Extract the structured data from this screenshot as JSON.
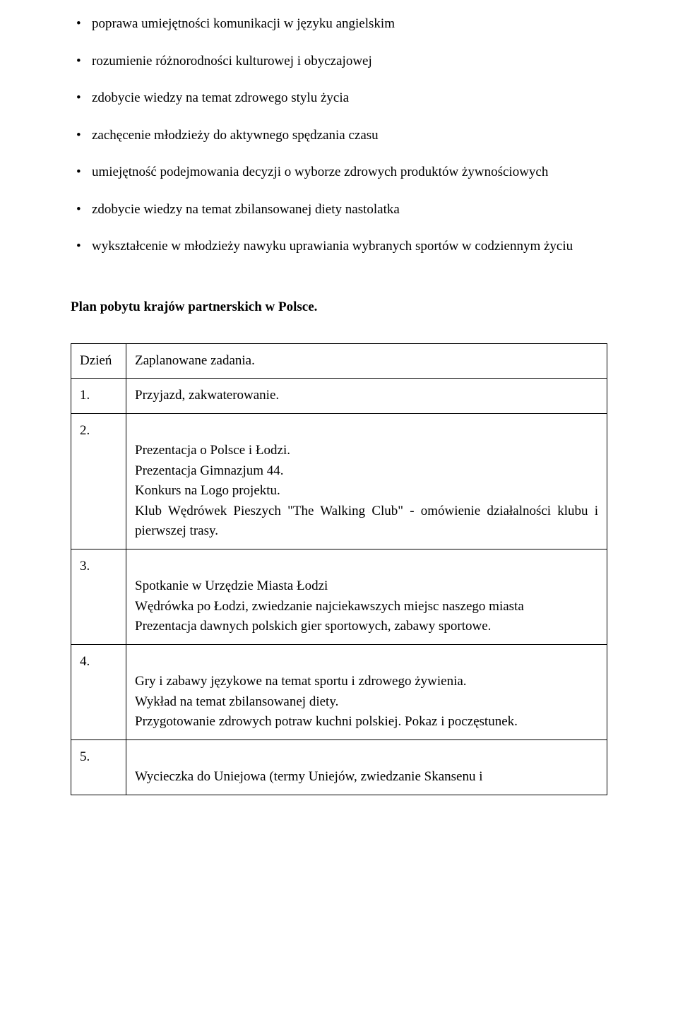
{
  "bullets": [
    "poprawa umiejętności komunikacji w języku angielskim",
    "rozumienie różnorodności kulturowej i obyczajowej",
    "zdobycie wiedzy na temat zdrowego stylu życia",
    "zachęcenie młodzieży do aktywnego spędzania czasu",
    "umiejętność podejmowania decyzji o wyborze zdrowych produktów żywnościowych",
    "zdobycie wiedzy na temat zbilansowanej diety nastolatka",
    "wykształcenie w młodzieży nawyku uprawiania wybranych sportów w codziennym życiu"
  ],
  "section_heading": "Plan pobytu krajów partnerskich w Polsce.",
  "table": {
    "header": {
      "col1": "Dzień",
      "col2": "Zaplanowane zadania."
    },
    "rows": [
      {
        "day": "1.",
        "content": "Przyjazd, zakwaterowanie."
      },
      {
        "day": "2.",
        "content": "Prezentacja o Polsce i Łodzi.\nPrezentacja Gimnazjum 44.\nKonkurs na Logo projektu.\nKlub Wędrówek Pieszych \"The Walking Club\" - omówienie działalności klubu i pierwszej trasy.",
        "justify_last": true
      },
      {
        "day": "3.",
        "content": "Spotkanie w Urzędzie Miasta Łodzi\nWędrówka po Łodzi, zwiedzanie najciekawszych miejsc naszego miasta\nPrezentacja dawnych polskich gier sportowych, zabawy sportowe.",
        "justify_last": false
      },
      {
        "day": "4.",
        "content": "Gry i zabawy językowe na temat sportu i zdrowego żywienia.\nWykład na temat zbilansowanej diety.\nPrzygotowanie zdrowych potraw kuchni polskiej. Pokaz i poczęstunek."
      },
      {
        "day": "5.",
        "content": "Wycieczka do Uniejowa (termy Uniejów, zwiedzanie Skansenu i",
        "justify_last": true
      }
    ]
  }
}
